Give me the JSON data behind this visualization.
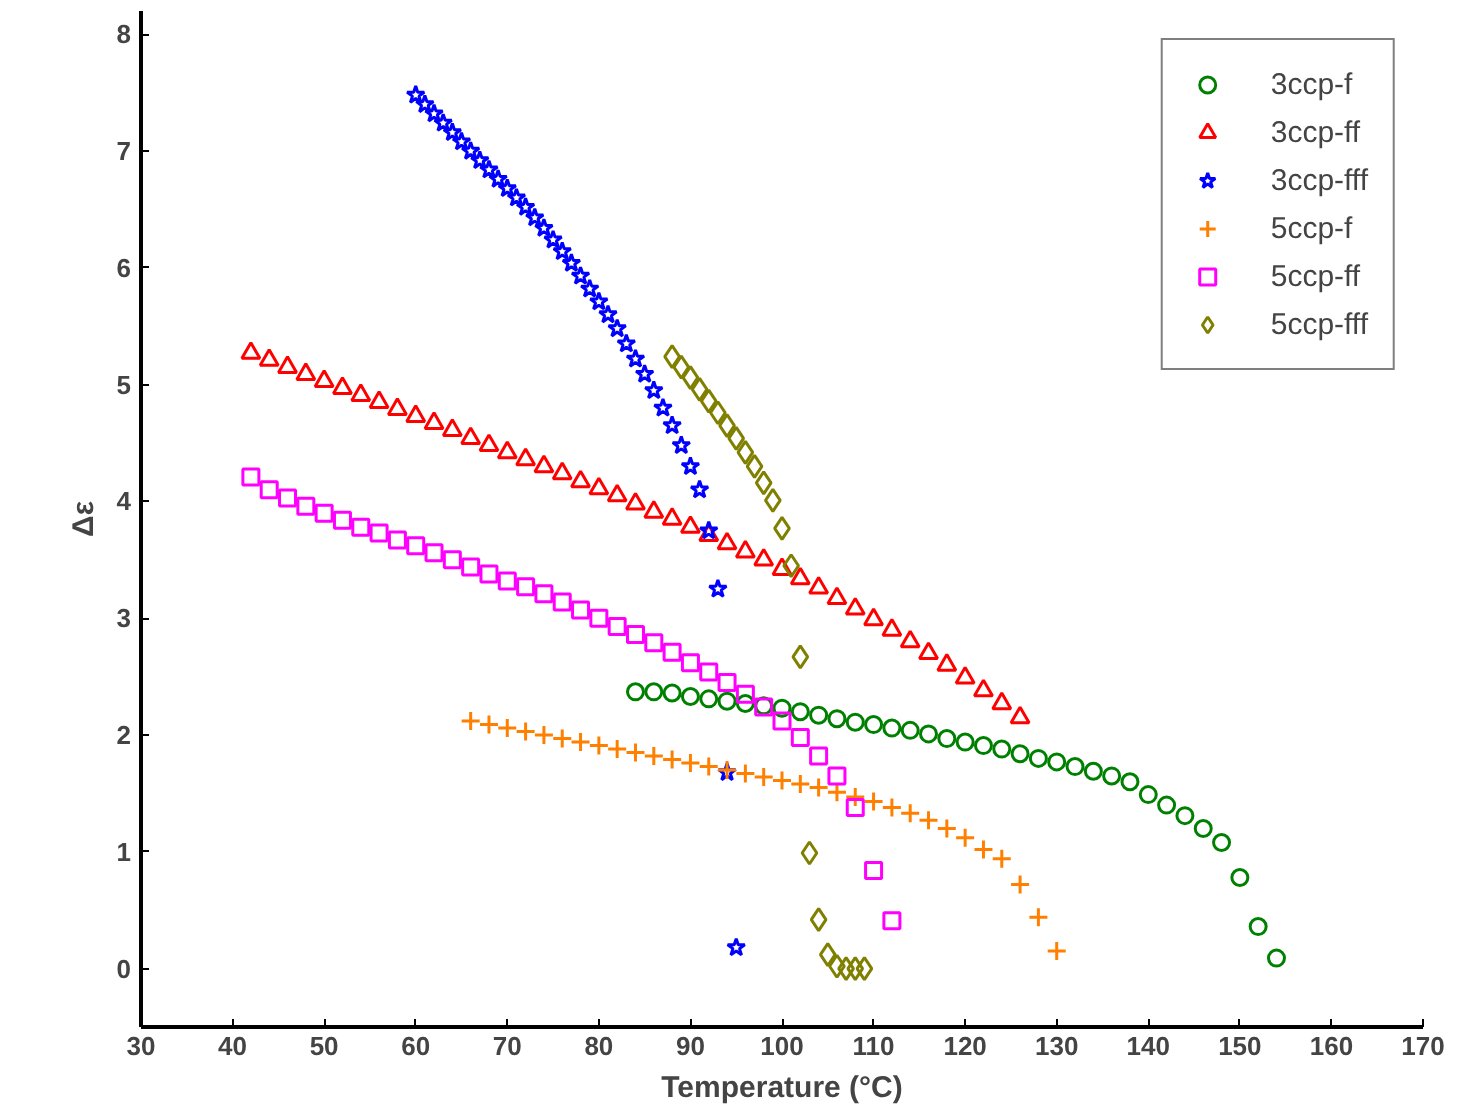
{
  "chart_data": {
    "type": "scatter",
    "xlabel": "Temperature (°C)",
    "ylabel": "Δε",
    "xlim": [
      30,
      170
    ],
    "ylim": [
      -0.5,
      8.2
    ],
    "xticks": [
      30,
      40,
      50,
      60,
      70,
      80,
      90,
      100,
      110,
      120,
      130,
      140,
      150,
      160,
      170
    ],
    "yticks": [
      0,
      1,
      2,
      3,
      4,
      5,
      6,
      7,
      8
    ],
    "grid": false,
    "legend": "top right",
    "series": [
      {
        "name": "3ccp-f",
        "color": "#008000",
        "marker": "circle",
        "x": [
          84,
          86,
          88,
          90,
          92,
          94,
          96,
          98,
          100,
          102,
          104,
          106,
          108,
          110,
          112,
          114,
          116,
          118,
          120,
          122,
          124,
          126,
          128,
          130,
          132,
          134,
          136,
          138,
          140,
          142,
          144,
          146,
          148,
          150,
          152,
          154
        ],
        "values": [
          2.37,
          2.37,
          2.36,
          2.33,
          2.31,
          2.29,
          2.27,
          2.25,
          2.23,
          2.2,
          2.17,
          2.14,
          2.11,
          2.09,
          2.06,
          2.04,
          2.01,
          1.97,
          1.94,
          1.91,
          1.88,
          1.84,
          1.8,
          1.77,
          1.73,
          1.69,
          1.65,
          1.6,
          1.49,
          1.4,
          1.31,
          1.2,
          1.08,
          0.78,
          0.36,
          0.09
        ]
      },
      {
        "name": "3ccp-ff",
        "color": "#ff0000",
        "marker": "triangle",
        "x": [
          42,
          44,
          46,
          48,
          50,
          52,
          54,
          56,
          58,
          60,
          62,
          64,
          66,
          68,
          70,
          72,
          74,
          76,
          78,
          80,
          82,
          84,
          86,
          88,
          90,
          92,
          94,
          96,
          98,
          100,
          102,
          104,
          106,
          108,
          110,
          112,
          114,
          116,
          118,
          120,
          122,
          124,
          126
        ],
        "values": [
          5.27,
          5.21,
          5.15,
          5.09,
          5.03,
          4.97,
          4.91,
          4.85,
          4.79,
          4.73,
          4.67,
          4.61,
          4.54,
          4.48,
          4.42,
          4.36,
          4.3,
          4.24,
          4.17,
          4.11,
          4.05,
          3.98,
          3.91,
          3.85,
          3.78,
          3.71,
          3.64,
          3.57,
          3.5,
          3.42,
          3.34,
          3.26,
          3.17,
          3.08,
          2.99,
          2.9,
          2.8,
          2.7,
          2.6,
          2.49,
          2.38,
          2.27,
          2.15
        ]
      },
      {
        "name": "3ccp-fff",
        "color": "#0000ff",
        "marker": "star",
        "x": [
          60,
          61,
          62,
          63,
          64,
          65,
          66,
          67,
          68,
          69,
          70,
          71,
          72,
          73,
          74,
          75,
          76,
          77,
          78,
          79,
          80,
          81,
          82,
          83,
          84,
          85,
          86,
          87,
          88,
          89,
          90,
          91,
          92,
          93,
          94,
          95
        ],
        "values": [
          7.48,
          7.4,
          7.32,
          7.24,
          7.16,
          7.08,
          7.0,
          6.92,
          6.84,
          6.76,
          6.68,
          6.6,
          6.52,
          6.43,
          6.34,
          6.24,
          6.14,
          6.04,
          5.93,
          5.82,
          5.71,
          5.6,
          5.48,
          5.35,
          5.22,
          5.09,
          4.95,
          4.8,
          4.65,
          4.48,
          4.3,
          4.1,
          3.75,
          3.25,
          1.68,
          0.18
        ]
      },
      {
        "name": "5ccp-f",
        "color": "#ff8000",
        "marker": "cross",
        "x": [
          66,
          68,
          70,
          72,
          74,
          76,
          78,
          80,
          82,
          84,
          86,
          88,
          90,
          92,
          94,
          96,
          98,
          100,
          102,
          104,
          106,
          108,
          110,
          112,
          114,
          116,
          118,
          120,
          122,
          124,
          126,
          128,
          130
        ],
        "values": [
          2.12,
          2.09,
          2.06,
          2.03,
          2.0,
          1.97,
          1.94,
          1.91,
          1.88,
          1.85,
          1.82,
          1.79,
          1.76,
          1.73,
          1.7,
          1.67,
          1.64,
          1.61,
          1.58,
          1.55,
          1.51,
          1.47,
          1.43,
          1.38,
          1.33,
          1.27,
          1.2,
          1.12,
          1.02,
          0.94,
          0.72,
          0.44,
          0.15
        ]
      },
      {
        "name": "5ccp-ff",
        "color": "#ff00ff",
        "marker": "square",
        "x": [
          42,
          44,
          46,
          48,
          50,
          52,
          54,
          56,
          58,
          60,
          62,
          64,
          66,
          68,
          70,
          72,
          74,
          76,
          78,
          80,
          82,
          84,
          86,
          88,
          90,
          92,
          94,
          96,
          98,
          100,
          102,
          104,
          106,
          108,
          110,
          112
        ],
        "values": [
          4.21,
          4.1,
          4.03,
          3.96,
          3.9,
          3.84,
          3.78,
          3.73,
          3.67,
          3.62,
          3.56,
          3.5,
          3.44,
          3.38,
          3.32,
          3.27,
          3.21,
          3.14,
          3.07,
          3.0,
          2.93,
          2.86,
          2.79,
          2.71,
          2.62,
          2.54,
          2.45,
          2.35,
          2.24,
          2.12,
          1.98,
          1.82,
          1.65,
          1.38,
          0.84,
          0.41
        ]
      },
      {
        "name": "5ccp-fff",
        "color": "#808000",
        "marker": "diamond",
        "x": [
          88,
          89,
          90,
          91,
          92,
          93,
          94,
          95,
          96,
          97,
          98,
          99,
          100,
          101,
          102,
          103,
          104,
          105,
          106,
          107,
          108,
          109
        ],
        "values": [
          5.24,
          5.15,
          5.06,
          4.96,
          4.86,
          4.76,
          4.65,
          4.54,
          4.42,
          4.3,
          4.16,
          4.01,
          3.77,
          3.45,
          2.67,
          0.99,
          0.42,
          0.12,
          0.02,
          0.0,
          0.0,
          0.0
        ]
      }
    ]
  }
}
